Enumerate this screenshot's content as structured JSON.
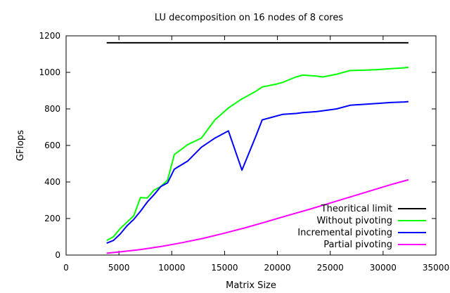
{
  "chart_data": {
    "type": "line",
    "title": "LU decomposition on 16 nodes of 8 cores",
    "xlabel": "Matrix Size",
    "ylabel": "GFlops",
    "xlim": [
      0,
      35000
    ],
    "ylim": [
      0,
      1200
    ],
    "xticks": [
      0,
      5000,
      10000,
      15000,
      20000,
      25000,
      30000,
      35000
    ],
    "yticks": [
      0,
      200,
      400,
      600,
      800,
      1000,
      1200
    ],
    "grid": false,
    "legend_position": "bottom-right",
    "series": [
      {
        "name": "Theoritical limit",
        "color": "#000000",
        "x": [
          3840,
          32400
        ],
        "y": [
          1162,
          1162
        ]
      },
      {
        "name": "Without pivoting",
        "color": "#00ff00",
        "x": [
          3840,
          4480,
          5120,
          5760,
          6400,
          7040,
          7680,
          8320,
          8960,
          9600,
          10240,
          11520,
          12800,
          13440,
          14080,
          15360,
          16640,
          17920,
          18560,
          19840,
          20480,
          21760,
          22400,
          23680,
          24320,
          25600,
          26880,
          28160,
          29440,
          30720,
          32000,
          32400
        ],
        "y": [
          80,
          100,
          145,
          180,
          215,
          315,
          312,
          355,
          375,
          410,
          550,
          605,
          640,
          690,
          740,
          805,
          855,
          895,
          920,
          935,
          945,
          975,
          985,
          980,
          975,
          990,
          1010,
          1012,
          1015,
          1020,
          1025,
          1028
        ]
      },
      {
        "name": "Incremental pivoting",
        "color": "#0000ff",
        "x": [
          3840,
          4480,
          5120,
          5760,
          6400,
          7040,
          7680,
          8320,
          8960,
          9600,
          10240,
          11520,
          12800,
          14080,
          15360,
          16640,
          17920,
          18560,
          19840,
          20480,
          21760,
          22400,
          23680,
          24320,
          25600,
          26880,
          28160,
          29440,
          30720,
          32000,
          32400
        ],
        "y": [
          65,
          80,
          115,
          160,
          195,
          240,
          290,
          330,
          375,
          395,
          470,
          515,
          590,
          640,
          680,
          465,
          645,
          740,
          760,
          770,
          775,
          780,
          785,
          790,
          800,
          820,
          825,
          830,
          835,
          838,
          840
        ]
      },
      {
        "name": "Partial pivoting",
        "color": "#ff00ff",
        "x": [
          3840,
          5000,
          7000,
          9000,
          11000,
          13000,
          15000,
          17000,
          19000,
          21000,
          23000,
          25000,
          27000,
          29000,
          31000,
          32400
        ],
        "y": [
          10,
          17,
          30,
          47,
          68,
          92,
          120,
          150,
          183,
          217,
          250,
          285,
          320,
          355,
          390,
          412
        ]
      }
    ]
  }
}
